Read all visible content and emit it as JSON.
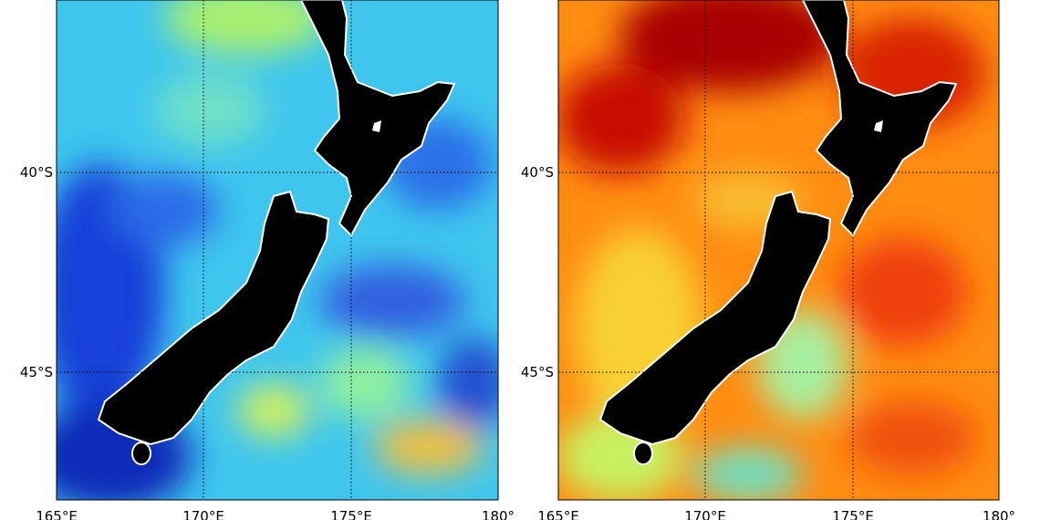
{
  "panels": [
    {
      "y_labels": [
        "40°S",
        "45°S"
      ],
      "x_labels": [
        "165°E",
        "170°E",
        "175°E",
        "180°"
      ]
    },
    {
      "y_labels": [
        "40°S",
        "45°S"
      ],
      "x_labels": [
        "165°E",
        "170°E",
        "175°E",
        "180°"
      ]
    }
  ]
}
